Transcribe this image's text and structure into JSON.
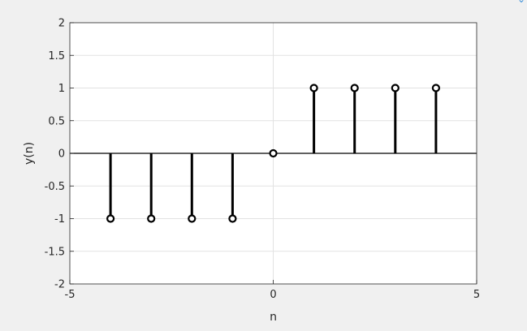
{
  "chart_data": {
    "type": "stem",
    "xlabel": "n",
    "ylabel": "y(n)",
    "xlim": [
      -5,
      5
    ],
    "ylim": [
      -2,
      2
    ],
    "x_ticks": [
      "-5",
      "0",
      "5"
    ],
    "y_ticks": [
      "2",
      "1.5",
      "1",
      "0.5",
      "0",
      "-0.5",
      "-1",
      "-1.5",
      "-2"
    ],
    "grid": true,
    "series": [
      {
        "x": [
          -4,
          -3,
          -2,
          -1,
          0,
          1,
          2,
          3,
          4
        ],
        "y": [
          -1,
          -1,
          -1,
          -1,
          0,
          1,
          1,
          1,
          1
        ]
      }
    ],
    "colors": {
      "stem": "#000000",
      "grid": "#e2e2e2",
      "axes_bg": "#ffffff",
      "figure_bg": "#f0f0f0"
    }
  }
}
